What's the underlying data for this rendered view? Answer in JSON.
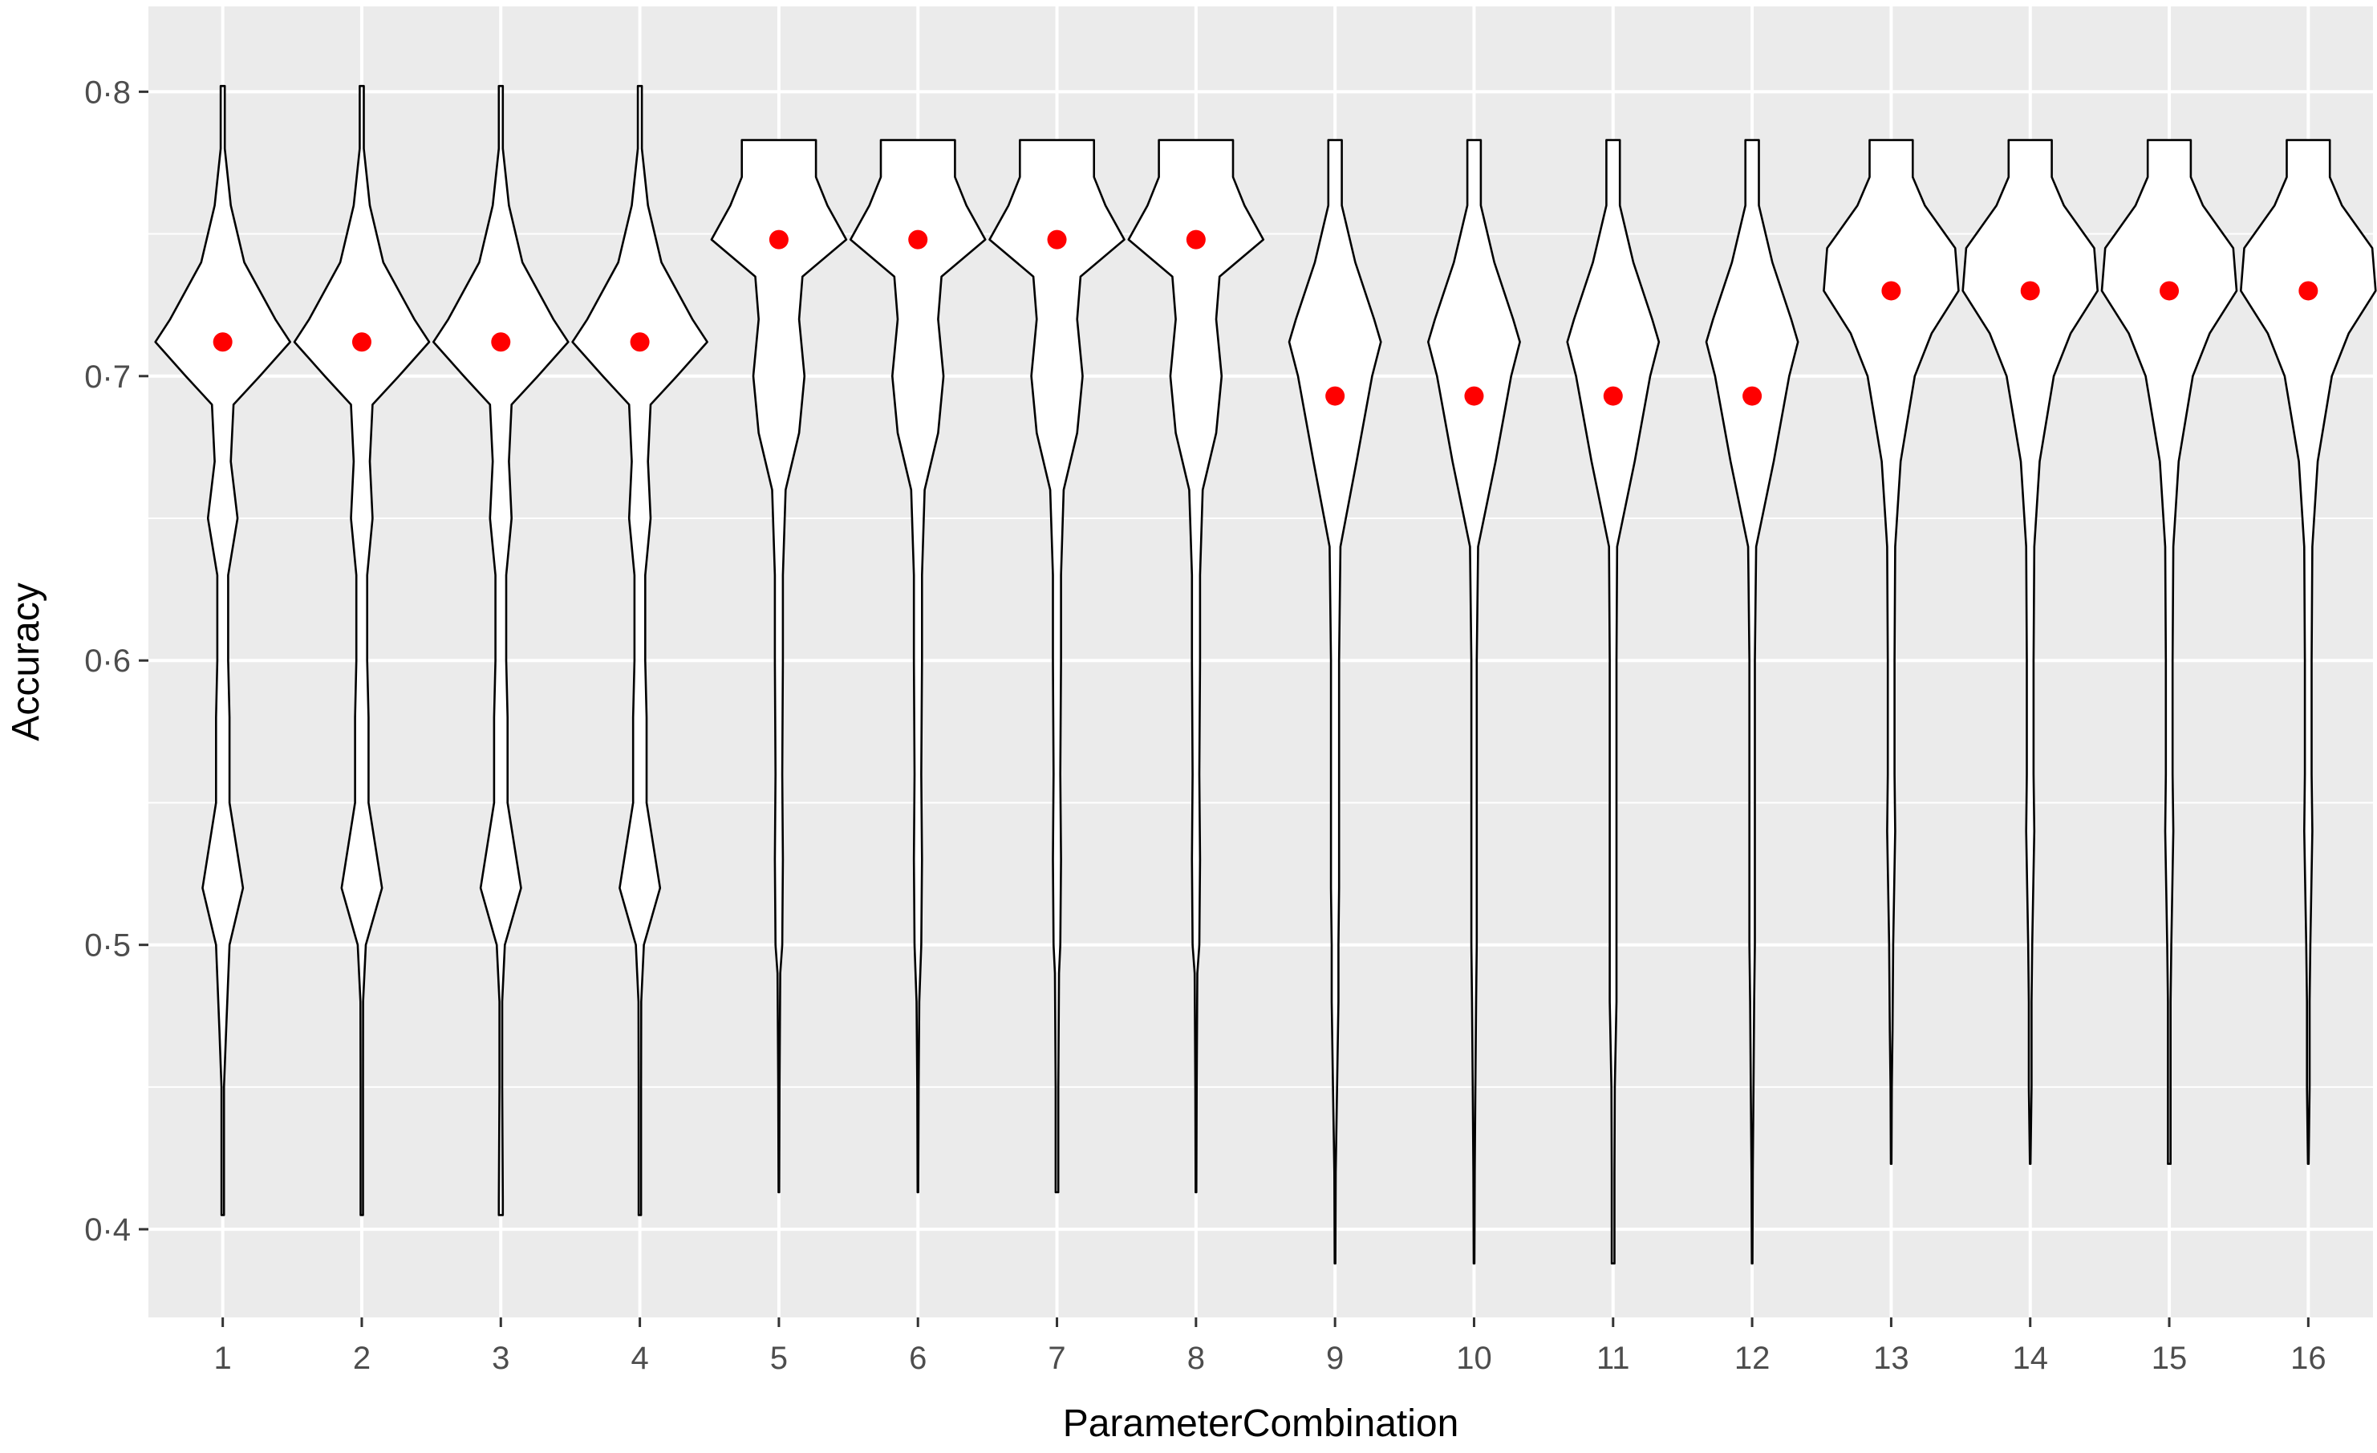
{
  "chart_data": {
    "type": "violin",
    "title": "",
    "xlabel": "ParameterCombination",
    "ylabel": "Accuracy",
    "ylim": [
      0.369,
      0.83
    ],
    "yticks": [
      0.4,
      0.5,
      0.6,
      0.7,
      0.8
    ],
    "ytick_labels": [
      "0·4",
      "0·5",
      "0·6",
      "0·7",
      "0·8"
    ],
    "categories": [
      "1",
      "2",
      "3",
      "4",
      "5",
      "6",
      "7",
      "8",
      "9",
      "10",
      "11",
      "12",
      "13",
      "14",
      "15",
      "16"
    ],
    "grid": true,
    "legend": "none",
    "colors": {
      "panel_background": "#EBEBEB",
      "grid_line": "#FFFFFF",
      "violin_fill": "#FFFFFF",
      "violin_outline": "#000000",
      "mean_point": "#FF0000",
      "tick_text": "#4D4D4D",
      "axis_title": "#000000"
    },
    "series": [
      {
        "marker": "mean",
        "values": [
          0.712,
          0.712,
          0.712,
          0.712,
          0.748,
          0.748,
          0.748,
          0.748,
          0.693,
          0.693,
          0.693,
          0.693,
          0.73,
          0.73,
          0.73,
          0.73
        ]
      }
    ],
    "violins": [
      {
        "category": "1",
        "min": 0.405,
        "max": 0.802,
        "profile": [
          [
            0.405,
            0.018
          ],
          [
            0.45,
            0.018
          ],
          [
            0.47,
            0.05
          ],
          [
            0.5,
            0.1
          ],
          [
            0.52,
            0.3
          ],
          [
            0.55,
            0.1
          ],
          [
            0.58,
            0.1
          ],
          [
            0.6,
            0.08
          ],
          [
            0.63,
            0.08
          ],
          [
            0.65,
            0.22
          ],
          [
            0.67,
            0.12
          ],
          [
            0.69,
            0.16
          ],
          [
            0.7,
            0.55
          ],
          [
            0.712,
            1.0
          ],
          [
            0.72,
            0.78
          ],
          [
            0.74,
            0.32
          ],
          [
            0.76,
            0.12
          ],
          [
            0.78,
            0.03
          ],
          [
            0.8,
            0.03
          ],
          [
            0.802,
            0.03
          ]
        ]
      },
      {
        "category": "2",
        "min": 0.405,
        "max": 0.802,
        "profile": [
          [
            0.405,
            0.018
          ],
          [
            0.45,
            0.018
          ],
          [
            0.48,
            0.02
          ],
          [
            0.5,
            0.06
          ],
          [
            0.52,
            0.3
          ],
          [
            0.55,
            0.1
          ],
          [
            0.58,
            0.1
          ],
          [
            0.6,
            0.08
          ],
          [
            0.63,
            0.08
          ],
          [
            0.65,
            0.16
          ],
          [
            0.67,
            0.12
          ],
          [
            0.69,
            0.16
          ],
          [
            0.7,
            0.55
          ],
          [
            0.712,
            1.0
          ],
          [
            0.72,
            0.78
          ],
          [
            0.74,
            0.32
          ],
          [
            0.76,
            0.12
          ],
          [
            0.78,
            0.03
          ],
          [
            0.8,
            0.03
          ],
          [
            0.802,
            0.03
          ]
        ]
      },
      {
        "category": "3",
        "min": 0.405,
        "max": 0.802,
        "profile": [
          [
            0.405,
            0.03
          ],
          [
            0.41,
            0.03
          ],
          [
            0.45,
            0.02
          ],
          [
            0.48,
            0.02
          ],
          [
            0.5,
            0.06
          ],
          [
            0.52,
            0.3
          ],
          [
            0.55,
            0.1
          ],
          [
            0.58,
            0.1
          ],
          [
            0.6,
            0.08
          ],
          [
            0.63,
            0.08
          ],
          [
            0.65,
            0.16
          ],
          [
            0.67,
            0.12
          ],
          [
            0.69,
            0.16
          ],
          [
            0.7,
            0.55
          ],
          [
            0.712,
            1.0
          ],
          [
            0.72,
            0.78
          ],
          [
            0.74,
            0.32
          ],
          [
            0.76,
            0.12
          ],
          [
            0.78,
            0.03
          ],
          [
            0.8,
            0.03
          ],
          [
            0.802,
            0.03
          ]
        ]
      },
      {
        "category": "4",
        "min": 0.405,
        "max": 0.802,
        "profile": [
          [
            0.405,
            0.018
          ],
          [
            0.45,
            0.018
          ],
          [
            0.48,
            0.02
          ],
          [
            0.5,
            0.06
          ],
          [
            0.52,
            0.3
          ],
          [
            0.55,
            0.1
          ],
          [
            0.58,
            0.1
          ],
          [
            0.6,
            0.08
          ],
          [
            0.63,
            0.08
          ],
          [
            0.65,
            0.16
          ],
          [
            0.67,
            0.12
          ],
          [
            0.69,
            0.16
          ],
          [
            0.7,
            0.55
          ],
          [
            0.712,
            1.0
          ],
          [
            0.72,
            0.78
          ],
          [
            0.74,
            0.32
          ],
          [
            0.76,
            0.12
          ],
          [
            0.78,
            0.03
          ],
          [
            0.8,
            0.03
          ],
          [
            0.802,
            0.03
          ]
        ]
      },
      {
        "category": "5",
        "min": 0.413,
        "max": 0.783,
        "profile": [
          [
            0.413,
            0.005
          ],
          [
            0.45,
            0.01
          ],
          [
            0.49,
            0.02
          ],
          [
            0.5,
            0.05
          ],
          [
            0.53,
            0.06
          ],
          [
            0.56,
            0.05
          ],
          [
            0.6,
            0.06
          ],
          [
            0.63,
            0.06
          ],
          [
            0.66,
            0.1
          ],
          [
            0.68,
            0.3
          ],
          [
            0.7,
            0.38
          ],
          [
            0.72,
            0.3
          ],
          [
            0.735,
            0.35
          ],
          [
            0.748,
            1.0
          ],
          [
            0.76,
            0.72
          ],
          [
            0.77,
            0.55
          ],
          [
            0.783,
            0.55
          ]
        ]
      },
      {
        "category": "6",
        "min": 0.413,
        "max": 0.783,
        "profile": [
          [
            0.413,
            0.005
          ],
          [
            0.45,
            0.01
          ],
          [
            0.48,
            0.02
          ],
          [
            0.5,
            0.05
          ],
          [
            0.53,
            0.06
          ],
          [
            0.56,
            0.05
          ],
          [
            0.6,
            0.06
          ],
          [
            0.63,
            0.06
          ],
          [
            0.66,
            0.1
          ],
          [
            0.68,
            0.3
          ],
          [
            0.7,
            0.38
          ],
          [
            0.72,
            0.3
          ],
          [
            0.735,
            0.35
          ],
          [
            0.748,
            1.0
          ],
          [
            0.76,
            0.72
          ],
          [
            0.77,
            0.55
          ],
          [
            0.783,
            0.55
          ]
        ]
      },
      {
        "category": "7",
        "min": 0.413,
        "max": 0.783,
        "profile": [
          [
            0.413,
            0.02
          ],
          [
            0.45,
            0.02
          ],
          [
            0.49,
            0.03
          ],
          [
            0.5,
            0.05
          ],
          [
            0.53,
            0.06
          ],
          [
            0.56,
            0.05
          ],
          [
            0.6,
            0.06
          ],
          [
            0.63,
            0.06
          ],
          [
            0.66,
            0.1
          ],
          [
            0.68,
            0.3
          ],
          [
            0.7,
            0.38
          ],
          [
            0.72,
            0.3
          ],
          [
            0.735,
            0.35
          ],
          [
            0.748,
            1.0
          ],
          [
            0.76,
            0.72
          ],
          [
            0.77,
            0.55
          ],
          [
            0.783,
            0.55
          ]
        ]
      },
      {
        "category": "8",
        "min": 0.413,
        "max": 0.783,
        "profile": [
          [
            0.413,
            0.005
          ],
          [
            0.45,
            0.01
          ],
          [
            0.49,
            0.02
          ],
          [
            0.5,
            0.05
          ],
          [
            0.53,
            0.06
          ],
          [
            0.56,
            0.05
          ],
          [
            0.6,
            0.06
          ],
          [
            0.63,
            0.06
          ],
          [
            0.66,
            0.1
          ],
          [
            0.68,
            0.3
          ],
          [
            0.7,
            0.38
          ],
          [
            0.72,
            0.3
          ],
          [
            0.735,
            0.35
          ],
          [
            0.748,
            1.0
          ],
          [
            0.76,
            0.72
          ],
          [
            0.77,
            0.55
          ],
          [
            0.783,
            0.55
          ]
        ]
      },
      {
        "category": "9",
        "min": 0.388,
        "max": 0.783,
        "profile": [
          [
            0.388,
            0.005
          ],
          [
            0.42,
            0.01
          ],
          [
            0.45,
            0.03
          ],
          [
            0.48,
            0.05
          ],
          [
            0.5,
            0.05
          ],
          [
            0.52,
            0.06
          ],
          [
            0.55,
            0.06
          ],
          [
            0.6,
            0.06
          ],
          [
            0.64,
            0.08
          ],
          [
            0.67,
            0.32
          ],
          [
            0.7,
            0.55
          ],
          [
            0.712,
            0.68
          ],
          [
            0.72,
            0.58
          ],
          [
            0.74,
            0.3
          ],
          [
            0.76,
            0.1
          ],
          [
            0.783,
            0.1
          ]
        ]
      },
      {
        "category": "10",
        "min": 0.388,
        "max": 0.783,
        "profile": [
          [
            0.388,
            0.005
          ],
          [
            0.42,
            0.01
          ],
          [
            0.45,
            0.02
          ],
          [
            0.48,
            0.03
          ],
          [
            0.5,
            0.04
          ],
          [
            0.55,
            0.04
          ],
          [
            0.6,
            0.04
          ],
          [
            0.64,
            0.06
          ],
          [
            0.67,
            0.32
          ],
          [
            0.7,
            0.55
          ],
          [
            0.712,
            0.68
          ],
          [
            0.72,
            0.58
          ],
          [
            0.74,
            0.3
          ],
          [
            0.76,
            0.1
          ],
          [
            0.783,
            0.1
          ]
        ]
      },
      {
        "category": "11",
        "min": 0.388,
        "max": 0.783,
        "profile": [
          [
            0.388,
            0.02
          ],
          [
            0.42,
            0.02
          ],
          [
            0.45,
            0.025
          ],
          [
            0.48,
            0.05
          ],
          [
            0.5,
            0.05
          ],
          [
            0.55,
            0.05
          ],
          [
            0.6,
            0.05
          ],
          [
            0.64,
            0.06
          ],
          [
            0.67,
            0.32
          ],
          [
            0.7,
            0.55
          ],
          [
            0.712,
            0.68
          ],
          [
            0.72,
            0.58
          ],
          [
            0.74,
            0.3
          ],
          [
            0.76,
            0.1
          ],
          [
            0.783,
            0.1
          ]
        ]
      },
      {
        "category": "12",
        "min": 0.388,
        "max": 0.783,
        "profile": [
          [
            0.388,
            0.005
          ],
          [
            0.42,
            0.01
          ],
          [
            0.45,
            0.02
          ],
          [
            0.48,
            0.03
          ],
          [
            0.5,
            0.04
          ],
          [
            0.55,
            0.04
          ],
          [
            0.6,
            0.04
          ],
          [
            0.64,
            0.06
          ],
          [
            0.67,
            0.32
          ],
          [
            0.7,
            0.55
          ],
          [
            0.712,
            0.68
          ],
          [
            0.72,
            0.58
          ],
          [
            0.74,
            0.3
          ],
          [
            0.76,
            0.1
          ],
          [
            0.783,
            0.1
          ]
        ]
      },
      {
        "category": "13",
        "min": 0.423,
        "max": 0.783,
        "profile": [
          [
            0.423,
            0.005
          ],
          [
            0.45,
            0.01
          ],
          [
            0.47,
            0.02
          ],
          [
            0.5,
            0.03
          ],
          [
            0.54,
            0.06
          ],
          [
            0.56,
            0.05
          ],
          [
            0.6,
            0.05
          ],
          [
            0.64,
            0.06
          ],
          [
            0.67,
            0.14
          ],
          [
            0.7,
            0.35
          ],
          [
            0.715,
            0.6
          ],
          [
            0.73,
            1.0
          ],
          [
            0.745,
            0.95
          ],
          [
            0.76,
            0.5
          ],
          [
            0.77,
            0.32
          ],
          [
            0.783,
            0.32
          ]
        ]
      },
      {
        "category": "14",
        "min": 0.423,
        "max": 0.783,
        "profile": [
          [
            0.423,
            0.005
          ],
          [
            0.45,
            0.02
          ],
          [
            0.48,
            0.02
          ],
          [
            0.5,
            0.03
          ],
          [
            0.54,
            0.06
          ],
          [
            0.56,
            0.05
          ],
          [
            0.6,
            0.05
          ],
          [
            0.64,
            0.06
          ],
          [
            0.67,
            0.14
          ],
          [
            0.7,
            0.35
          ],
          [
            0.715,
            0.6
          ],
          [
            0.73,
            1.0
          ],
          [
            0.745,
            0.95
          ],
          [
            0.76,
            0.5
          ],
          [
            0.77,
            0.32
          ],
          [
            0.783,
            0.32
          ]
        ]
      },
      {
        "category": "15",
        "min": 0.423,
        "max": 0.783,
        "profile": [
          [
            0.423,
            0.02
          ],
          [
            0.45,
            0.02
          ],
          [
            0.48,
            0.02
          ],
          [
            0.5,
            0.03
          ],
          [
            0.54,
            0.06
          ],
          [
            0.56,
            0.05
          ],
          [
            0.6,
            0.05
          ],
          [
            0.64,
            0.06
          ],
          [
            0.67,
            0.14
          ],
          [
            0.7,
            0.35
          ],
          [
            0.715,
            0.6
          ],
          [
            0.73,
            1.0
          ],
          [
            0.745,
            0.95
          ],
          [
            0.76,
            0.5
          ],
          [
            0.77,
            0.32
          ],
          [
            0.783,
            0.32
          ]
        ]
      },
      {
        "category": "16",
        "min": 0.423,
        "max": 0.783,
        "profile": [
          [
            0.423,
            0.005
          ],
          [
            0.45,
            0.02
          ],
          [
            0.48,
            0.02
          ],
          [
            0.5,
            0.03
          ],
          [
            0.54,
            0.06
          ],
          [
            0.56,
            0.05
          ],
          [
            0.6,
            0.05
          ],
          [
            0.64,
            0.06
          ],
          [
            0.67,
            0.14
          ],
          [
            0.7,
            0.35
          ],
          [
            0.715,
            0.6
          ],
          [
            0.73,
            1.0
          ],
          [
            0.745,
            0.95
          ],
          [
            0.76,
            0.5
          ],
          [
            0.77,
            0.32
          ],
          [
            0.783,
            0.32
          ]
        ]
      }
    ]
  }
}
